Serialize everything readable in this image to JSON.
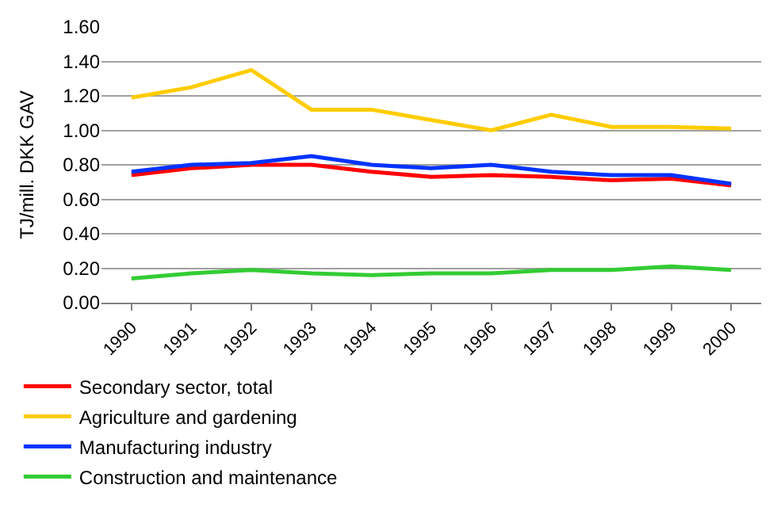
{
  "chart_data": {
    "type": "line",
    "ylabel": "TJ/mill. DKK GAV",
    "categories": [
      "1990",
      "1991",
      "1992",
      "1993",
      "1994",
      "1995",
      "1996",
      "1997",
      "1998",
      "1999",
      "2000"
    ],
    "series": [
      {
        "name": "Secondary sector, total",
        "color": "#ff0000",
        "values": [
          0.74,
          0.78,
          0.8,
          0.8,
          0.76,
          0.73,
          0.74,
          0.73,
          0.71,
          0.72,
          0.68
        ]
      },
      {
        "name": "Agriculture and gardening",
        "color": "#ffcc00",
        "values": [
          1.19,
          1.25,
          1.35,
          1.12,
          1.12,
          1.06,
          1.0,
          1.09,
          1.02,
          1.02,
          1.01
        ]
      },
      {
        "name": "Manufacturing industry",
        "color": "#0033ff",
        "values": [
          0.76,
          0.8,
          0.81,
          0.85,
          0.8,
          0.78,
          0.8,
          0.76,
          0.74,
          0.74,
          0.69
        ]
      },
      {
        "name": "Construction and maintenance",
        "color": "#33cc33",
        "values": [
          0.14,
          0.17,
          0.19,
          0.17,
          0.16,
          0.17,
          0.17,
          0.19,
          0.19,
          0.21,
          0.19
        ]
      }
    ],
    "ylim": [
      0,
      1.6
    ],
    "yticks": [
      {
        "value": 0,
        "label": "0.00"
      },
      {
        "value": 0.2,
        "label": "0.20"
      },
      {
        "value": 0.4,
        "label": "0.40"
      },
      {
        "value": 0.6,
        "label": "0.60"
      },
      {
        "value": 0.8,
        "label": "0.80"
      },
      {
        "value": 1.0,
        "label": "1.00"
      },
      {
        "value": 1.2,
        "label": "1.20"
      },
      {
        "value": 1.4,
        "label": "1.40"
      },
      {
        "value": 1.6,
        "label": "1.60"
      }
    ],
    "grid": "y",
    "legend": "bottom",
    "marker": "none",
    "line_style": "solid"
  }
}
